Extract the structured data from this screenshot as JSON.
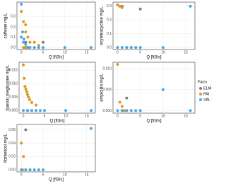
{
  "chart_data": [
    {
      "type": "scatter",
      "y_label": "caffeine mg/L",
      "x_label": "Q [ft3/s]",
      "legend_title": "Farm",
      "xlim": [
        -1,
        17
      ],
      "xticks": [
        0,
        5,
        10,
        15
      ],
      "ylim": [
        -0.02,
        0.44
      ],
      "yticks": [
        {
          "value": 0,
          "label": "0.0"
        },
        {
          "value": 0.1,
          "label": "0.1"
        },
        {
          "value": 0.2,
          "label": "0.2"
        },
        {
          "value": 0.3,
          "label": "0.3"
        }
      ],
      "series": [
        {
          "name": "ELM",
          "color": "#7f7f7f",
          "x": [
            1,
            1,
            5
          ],
          "values": [
            0.05,
            0.0,
            0.05
          ]
        },
        {
          "name": "FAI",
          "color": "#d99a1e",
          "x": [
            0,
            0.5,
            1,
            1,
            1.5,
            2,
            3,
            4,
            0.5,
            0.8,
            1.2
          ],
          "values": [
            0.35,
            0.25,
            0.22,
            0.15,
            0.1,
            0.05,
            0.05,
            0.02,
            0.0,
            0.0,
            0.0
          ]
        },
        {
          "name": "VAL",
          "color": "#4da6e0",
          "x": [
            0,
            0,
            0.5,
            1,
            2,
            3,
            4,
            5,
            10,
            16,
            0.3,
            0.6,
            1.5
          ],
          "values": [
            0.42,
            0.1,
            0.05,
            0.03,
            0.0,
            0.0,
            0.0,
            0.0,
            0.0,
            0.0,
            0.15,
            0.08,
            0.0
          ]
        }
      ]
    },
    {
      "type": "scatter",
      "y_label": "oxytetracycline mg/L",
      "x_label": "Q [ft3/s]",
      "xlim": [
        -1,
        17
      ],
      "xticks": [
        0,
        5,
        10,
        15
      ],
      "ylim": [
        -0.015,
        0.33
      ],
      "yticks": [
        {
          "value": 0,
          "label": "0.0"
        },
        {
          "value": 0.1,
          "label": "0.1"
        },
        {
          "value": 0.2,
          "label": "0.2"
        },
        {
          "value": 0.3,
          "label": "0.3"
        }
      ],
      "series": [
        {
          "name": "ELM",
          "color": "#7f7f7f",
          "x": [
            1,
            5
          ],
          "values": [
            0.3,
            0.28
          ]
        },
        {
          "name": "FAI",
          "color": "#d99a1e",
          "x": [
            0,
            0.5,
            1,
            2,
            3,
            4
          ],
          "values": [
            0.31,
            0.3,
            0.29,
            0.0,
            0.0,
            0.0
          ]
        },
        {
          "name": "VAL",
          "color": "#4da6e0",
          "x": [
            0,
            1,
            2,
            3,
            4,
            5,
            10,
            16
          ],
          "values": [
            0.0,
            0.0,
            0.0,
            0.0,
            0.0,
            0.0,
            0.0,
            0.3
          ]
        }
      ]
    },
    {
      "type": "scatter",
      "y_label": "flunixin meglumine mg/L",
      "x_label": "Q [ft3/s]",
      "xlim": [
        -1,
        17
      ],
      "xticks": [
        0,
        5,
        10,
        15
      ],
      "ylim": [
        -0.001,
        0.018
      ],
      "yticks": [
        {
          "value": 0,
          "label": "0.000"
        },
        {
          "value": 0.005,
          "label": "0.005"
        },
        {
          "value": 0.01,
          "label": "0.010"
        },
        {
          "value": 0.015,
          "label": "0.015"
        }
      ],
      "series": [
        {
          "name": "ELM",
          "color": "#7f7f7f",
          "x": [
            1,
            2
          ],
          "values": [
            0.0,
            0.0
          ]
        },
        {
          "name": "FAI",
          "color": "#d99a1e",
          "x": [
            0,
            0.2,
            0.4,
            0.6,
            0.8,
            1,
            1.2,
            1.5,
            2,
            3
          ],
          "values": [
            0.017,
            0.012,
            0.009,
            0.008,
            0.007,
            0.006,
            0.005,
            0.004,
            0.003,
            0.002
          ]
        },
        {
          "name": "VAL",
          "color": "#4da6e0",
          "x": [
            0,
            1,
            2,
            3,
            4,
            5,
            10,
            16
          ],
          "values": [
            0.0,
            0.0,
            0.0,
            0.0,
            0.0,
            0.0,
            0.0,
            0.0
          ]
        }
      ]
    },
    {
      "type": "scatter",
      "y_label": "ampicillin mg/L",
      "x_label": "Q [ft3/s]",
      "xlim": [
        -1,
        17
      ],
      "xticks": [
        0,
        5,
        10,
        15
      ],
      "ylim": [
        -0.0006,
        0.0115
      ],
      "yticks": [
        {
          "value": 0,
          "label": "0.000"
        },
        {
          "value": 0.005,
          "label": "0.005"
        },
        {
          "value": 0.01,
          "label": "0.010"
        }
      ],
      "series": [
        {
          "name": "ELM",
          "color": "#7f7f7f",
          "x": [
            2,
            1
          ],
          "values": [
            0.003,
            0.0
          ]
        },
        {
          "name": "FAI",
          "color": "#d99a1e",
          "x": [
            0,
            0.5,
            1,
            1.5,
            2
          ],
          "values": [
            0.011,
            0.002,
            0.001,
            0.0,
            0.0
          ]
        },
        {
          "name": "VAL",
          "color": "#4da6e0",
          "x": [
            0,
            1,
            2,
            3,
            4,
            5,
            10,
            16
          ],
          "values": [
            0.0,
            0.0,
            0.0,
            0.0,
            0.0,
            0.0,
            0.005,
            0.0
          ]
        }
      ]
    },
    {
      "type": "scatter",
      "y_label": "florfenicol mg/L",
      "x_label": "Q [ft3/s]",
      "xlim": [
        -1,
        17
      ],
      "xticks": [
        0,
        5,
        10,
        15
      ],
      "ylim": [
        -0.003,
        0.068
      ],
      "yticks": [
        {
          "value": 0,
          "label": "0.00"
        },
        {
          "value": 0.02,
          "label": "0.02"
        },
        {
          "value": 0.04,
          "label": "0.04"
        },
        {
          "value": 0.06,
          "label": "0.06"
        }
      ],
      "series": [
        {
          "name": "ELM",
          "color": "#7f7f7f",
          "x": [
            1
          ],
          "values": [
            0.06
          ]
        },
        {
          "name": "FAI",
          "color": "#d99a1e",
          "x": [
            0,
            0.5,
            0.3,
            1,
            2
          ],
          "values": [
            0.04,
            0.02,
            0.0,
            0.0,
            0.0
          ]
        },
        {
          "name": "VAL",
          "color": "#4da6e0",
          "x": [
            0,
            1,
            2,
            3,
            4,
            5,
            16
          ],
          "values": [
            0.0,
            0.0,
            0.0,
            0.0,
            0.0,
            0.0,
            0.062
          ]
        }
      ]
    }
  ]
}
